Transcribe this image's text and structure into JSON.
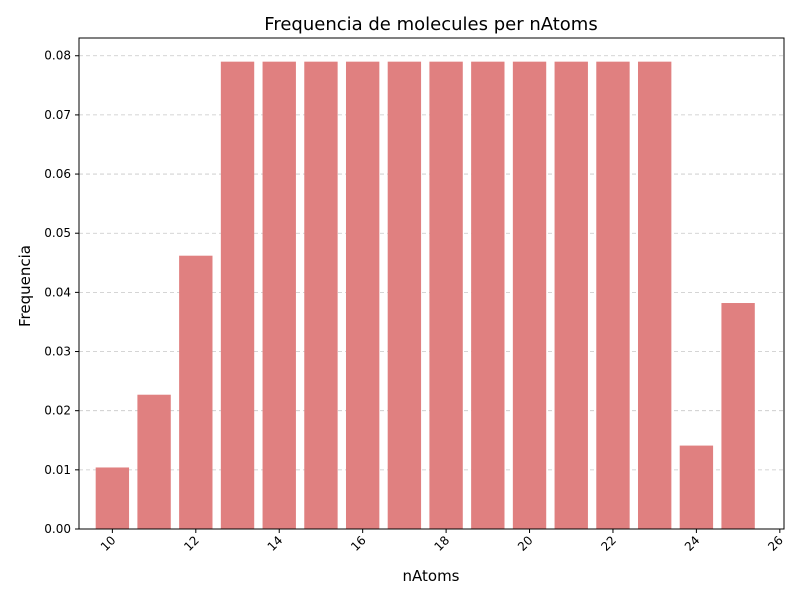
{
  "chart_data": {
    "type": "bar",
    "title": "Frequencia de molecules per nAtoms",
    "xlabel": "nAtoms",
    "ylabel": "Frequencia",
    "x": [
      10,
      11,
      12,
      13,
      14,
      15,
      16,
      17,
      18,
      19,
      20,
      21,
      22,
      23,
      24,
      25
    ],
    "values": [
      0.0104,
      0.0227,
      0.0462,
      0.079,
      0.079,
      0.079,
      0.079,
      0.079,
      0.079,
      0.079,
      0.079,
      0.079,
      0.079,
      0.079,
      0.0141,
      0.0382
    ],
    "xlim": [
      9.2,
      26.1
    ],
    "ylim": [
      0,
      0.083
    ],
    "xticks": [
      10,
      12,
      14,
      16,
      18,
      20,
      22,
      24,
      26
    ],
    "xtick_labels": [
      "10",
      "12",
      "14",
      "16",
      "18",
      "20",
      "22",
      "24",
      "26"
    ],
    "yticks": [
      0.0,
      0.01,
      0.02,
      0.03,
      0.04,
      0.05,
      0.06,
      0.07,
      0.08
    ],
    "ytick_labels": [
      "0.00",
      "0.01",
      "0.02",
      "0.03",
      "0.04",
      "0.05",
      "0.06",
      "0.07",
      "0.08"
    ],
    "bar_color": "#e08080",
    "grid": "y-dashed",
    "legend": "none"
  }
}
